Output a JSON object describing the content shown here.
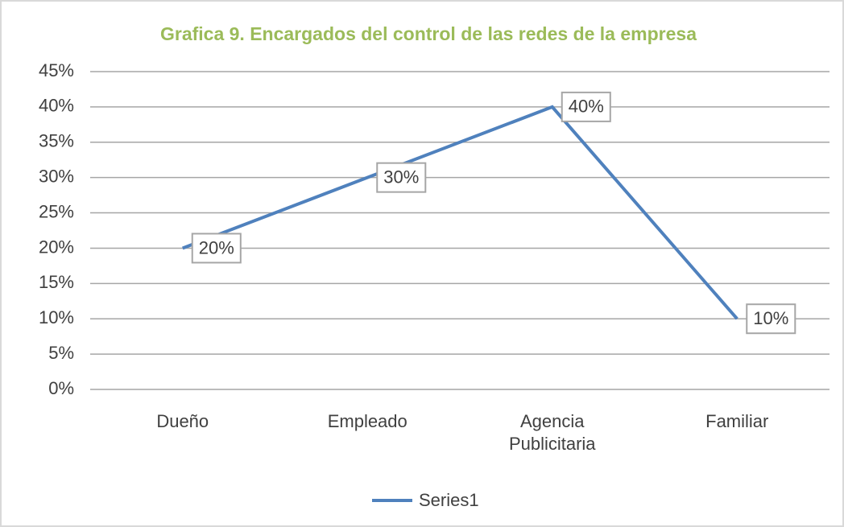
{
  "chart_data": {
    "type": "line",
    "title": "Grafica 9. Encargados del control de las redes de la empresa",
    "categories": [
      "Dueño",
      "Empleado",
      "Agencia Publicitaria",
      "Familiar"
    ],
    "series": [
      {
        "name": "Series1",
        "color": "#4f81bd",
        "values": [
          20,
          30,
          40,
          10
        ],
        "value_labels": [
          "20%",
          "30%",
          "40%",
          "10%"
        ]
      }
    ],
    "ylim": [
      0,
      45
    ],
    "yticks": [
      {
        "value": 0,
        "label": "0%"
      },
      {
        "value": 5,
        "label": "5%"
      },
      {
        "value": 10,
        "label": "10%"
      },
      {
        "value": 15,
        "label": "15%"
      },
      {
        "value": 20,
        "label": "20%"
      },
      {
        "value": 25,
        "label": "25%"
      },
      {
        "value": 30,
        "label": "30%"
      },
      {
        "value": 35,
        "label": "35%"
      },
      {
        "value": 40,
        "label": "40%"
      },
      {
        "value": 45,
        "label": "45%"
      }
    ],
    "grid": true,
    "legend": "bottom"
  }
}
